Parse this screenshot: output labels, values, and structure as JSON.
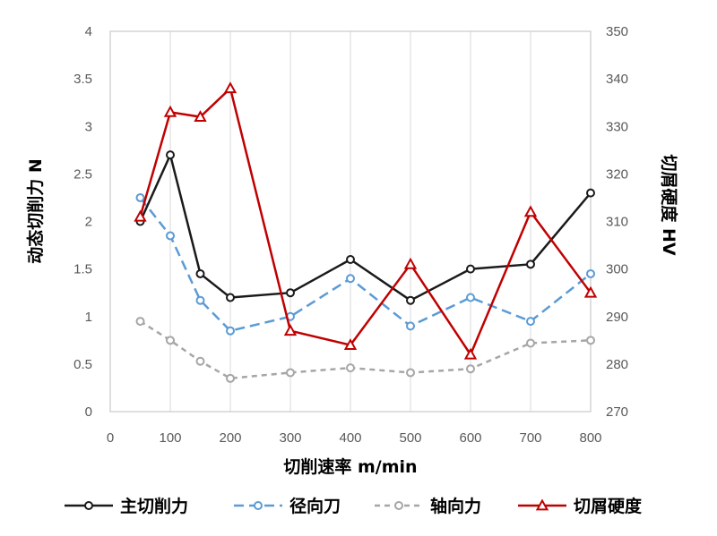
{
  "chart_data": {
    "type": "line",
    "xlabel": "切削速率 m/min",
    "ylabel_left": "动态切削力 N",
    "ylabel_right": "切屑硬度 HV",
    "x_ticks": [
      "0",
      "100",
      "200",
      "300",
      "400",
      "500",
      "600",
      "700",
      "800"
    ],
    "y_left_ticks": [
      "0",
      "0.5",
      "1",
      "1.5",
      "2",
      "2.5",
      "3",
      "3.5",
      "4"
    ],
    "y_right_ticks": [
      "270",
      "280",
      "290",
      "300",
      "310",
      "320",
      "330",
      "340",
      "350"
    ],
    "xlim": [
      0,
      800
    ],
    "ylim_left": [
      0,
      4
    ],
    "ylim_right": [
      270,
      350
    ],
    "x_category_order": [
      50,
      100,
      150,
      200,
      300,
      400,
      500,
      600,
      700,
      800
    ],
    "grid": "vertical",
    "legend_position": "bottom",
    "series": [
      {
        "name": "主切削力",
        "axis": "left",
        "color": "#1a1a1a",
        "dash": "solid",
        "marker": "circle",
        "x": [
          50,
          100,
          150,
          200,
          300,
          400,
          500,
          600,
          700,
          800
        ],
        "values": [
          2.0,
          2.7,
          1.45,
          1.2,
          1.25,
          1.6,
          1.17,
          1.5,
          1.55,
          2.3
        ]
      },
      {
        "name": "径向刀",
        "axis": "left",
        "color": "#5b9bd5",
        "dash": "long-dash",
        "marker": "circle",
        "x": [
          50,
          100,
          150,
          200,
          300,
          400,
          500,
          600,
          700,
          800
        ],
        "values": [
          2.25,
          1.85,
          1.17,
          0.85,
          1.0,
          1.4,
          0.9,
          1.2,
          0.95,
          1.45
        ]
      },
      {
        "name": "轴向力",
        "axis": "left",
        "color": "#a6a6a6",
        "dash": "short-dash",
        "marker": "circle",
        "x": [
          50,
          100,
          150,
          200,
          300,
          400,
          500,
          600,
          700,
          800
        ],
        "values": [
          0.95,
          0.75,
          0.53,
          0.35,
          0.41,
          0.46,
          0.41,
          0.45,
          0.72,
          0.75
        ]
      },
      {
        "name": "切屑硬度",
        "axis": "right",
        "color": "#c00000",
        "dash": "solid",
        "marker": "triangle",
        "x": [
          50,
          100,
          150,
          200,
          300,
          400,
          500,
          600,
          700,
          800
        ],
        "values": [
          311,
          333,
          332,
          338,
          287,
          284,
          301,
          282,
          312,
          295
        ]
      }
    ]
  }
}
